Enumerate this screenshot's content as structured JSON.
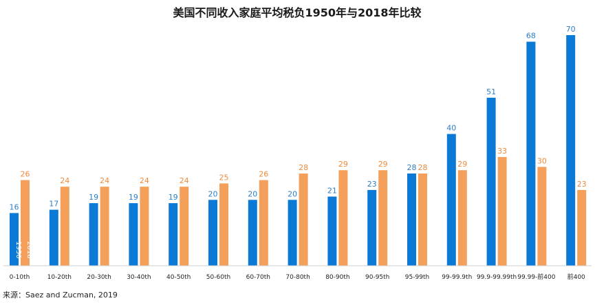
{
  "chart_data": {
    "type": "bar",
    "title": "美国不同收入家庭平均税负1950年与2018年比较",
    "categories": [
      "0-10th",
      "10-20th",
      "20-30th",
      "30-40th",
      "40-50th",
      "50-60th",
      "60-70th",
      "70-80th",
      "80-90th",
      "90-95th",
      "95-99th",
      "99-99.9th",
      "99.9-99.99th",
      "99.99-前400",
      "前400"
    ],
    "series": [
      {
        "name": "1950",
        "values": [
          16,
          17,
          19,
          19,
          19,
          20,
          20,
          20,
          21,
          23,
          28,
          40,
          51,
          68,
          70
        ]
      },
      {
        "name": "2018",
        "values": [
          26,
          24,
          24,
          24,
          24,
          25,
          26,
          28,
          29,
          29,
          28,
          29,
          33,
          30,
          23
        ]
      }
    ],
    "xlabel": "",
    "ylabel": "",
    "ylim": [
      0,
      70
    ],
    "grid": false,
    "legend": "inside-first-bars"
  },
  "colors": {
    "s1950": "#0a7ad6",
    "s2018": "#f5a05a",
    "value_1950": "#2b7fc8",
    "value_2018": "#f08a3a"
  },
  "source": "来源：Saez and Zucman, 2019"
}
